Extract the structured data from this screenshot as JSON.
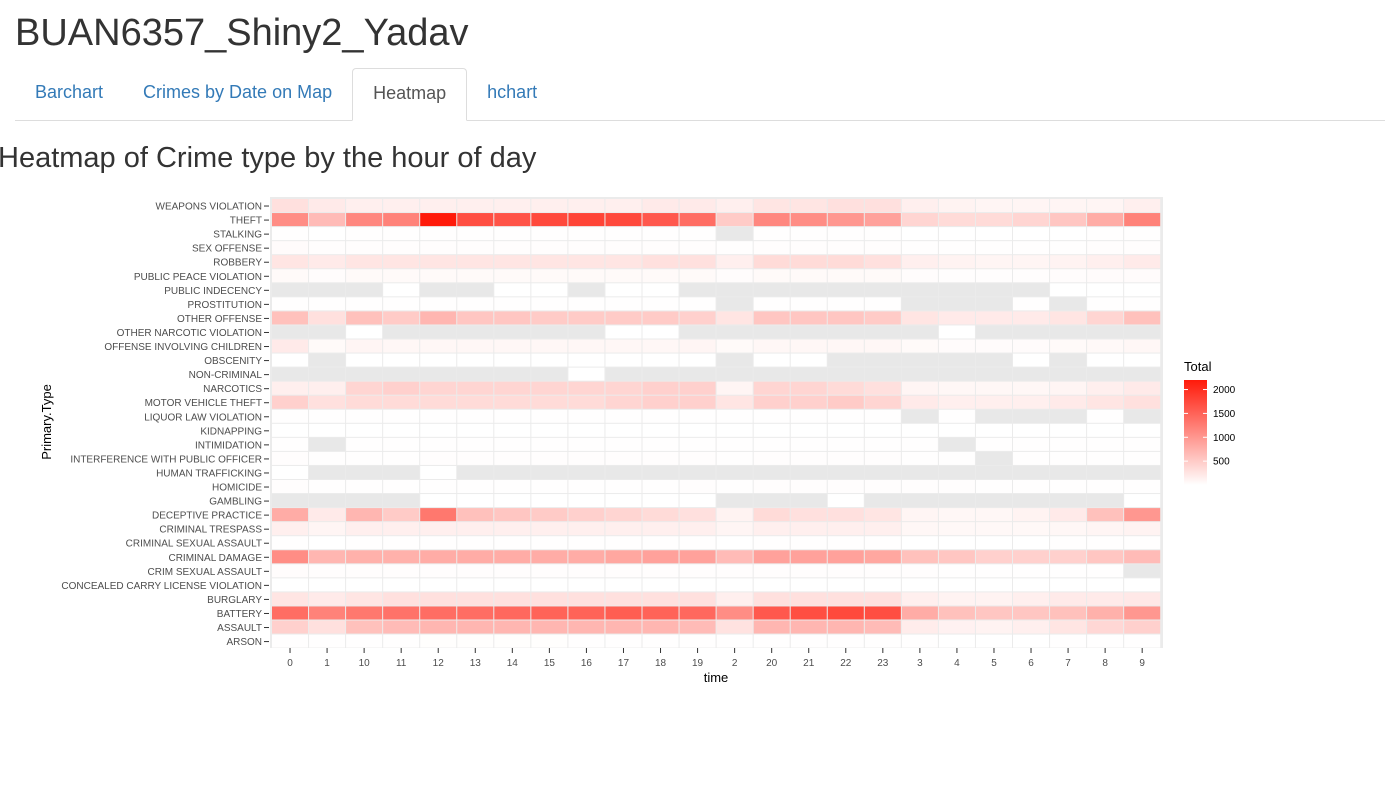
{
  "app": {
    "title": "BUAN6357_Shiny2_Yadav"
  },
  "tabs": [
    {
      "label": "Barchart",
      "active": false
    },
    {
      "label": "Crimes by Date on Map",
      "active": false
    },
    {
      "label": "Heatmap",
      "active": true
    },
    {
      "label": "hchart",
      "active": false
    }
  ],
  "main": {
    "heading": "Heatmap of Crime type by the hour of day"
  },
  "colors": {
    "low": "#ffffff",
    "high": "#ff1a0a",
    "missing": "#e8e8e8",
    "panel": "#ebebeb"
  },
  "chart_data": {
    "type": "heatmap",
    "title": "",
    "xlabel": "time",
    "ylabel": "Primary.Type",
    "legend": {
      "title": "Total",
      "breaks": [
        500,
        1000,
        1500,
        2000
      ],
      "placement": "right"
    },
    "value_range": [
      0,
      2200
    ],
    "x": [
      "0",
      "1",
      "10",
      "11",
      "12",
      "13",
      "14",
      "15",
      "16",
      "17",
      "18",
      "19",
      "2",
      "20",
      "21",
      "22",
      "23",
      "3",
      "4",
      "5",
      "6",
      "7",
      "8",
      "9"
    ],
    "y": [
      "ARSON",
      "ASSAULT",
      "BATTERY",
      "BURGLARY",
      "CONCEALED CARRY LICENSE VIOLATION",
      "CRIM SEXUAL ASSAULT",
      "CRIMINAL DAMAGE",
      "CRIMINAL SEXUAL ASSAULT",
      "CRIMINAL TRESPASS",
      "DECEPTIVE PRACTICE",
      "GAMBLING",
      "HOMICIDE",
      "HUMAN TRAFFICKING",
      "INTERFERENCE WITH PUBLIC OFFICER",
      "INTIMIDATION",
      "KIDNAPPING",
      "LIQUOR LAW VIOLATION",
      "MOTOR VEHICLE THEFT",
      "NARCOTICS",
      "NON-CRIMINAL",
      "OBSCENITY",
      "OFFENSE INVOLVING CHILDREN",
      "OTHER NARCOTIC VIOLATION",
      "OTHER OFFENSE",
      "PROSTITUTION",
      "PUBLIC INDECENCY",
      "PUBLIC PEACE VIOLATION",
      "ROBBERY",
      "SEX OFFENSE",
      "STALKING",
      "THEFT",
      "WEAPONS VIOLATION"
    ],
    "values": [
      [
        10,
        8,
        12,
        12,
        14,
        14,
        14,
        14,
        13,
        13,
        12,
        12,
        6,
        12,
        12,
        12,
        12,
        5,
        4,
        4,
        4,
        5,
        8,
        10
      ],
      [
        450,
        300,
        600,
        650,
        700,
        700,
        700,
        700,
        700,
        700,
        700,
        650,
        280,
        700,
        700,
        700,
        650,
        180,
        130,
        120,
        150,
        250,
        380,
        450
      ],
      [
        1400,
        1200,
        1300,
        1350,
        1400,
        1400,
        1450,
        1500,
        1500,
        1550,
        1500,
        1450,
        1100,
        1600,
        1700,
        1750,
        1700,
        800,
        600,
        550,
        550,
        600,
        750,
        1000
      ],
      [
        250,
        200,
        250,
        300,
        300,
        300,
        300,
        300,
        300,
        300,
        300,
        300,
        150,
        300,
        300,
        300,
        300,
        150,
        120,
        120,
        150,
        200,
        200,
        220
      ],
      [
        3,
        3,
        3,
        3,
        3,
        3,
        3,
        3,
        3,
        3,
        3,
        3,
        3,
        3,
        3,
        3,
        3,
        3,
        3,
        3,
        3,
        3,
        3,
        3
      ],
      [
        25,
        15,
        15,
        15,
        15,
        15,
        15,
        15,
        15,
        15,
        15,
        15,
        15,
        15,
        15,
        15,
        15,
        15,
        10,
        10,
        10,
        10,
        10,
        null
      ],
      [
        1100,
        700,
        750,
        750,
        800,
        800,
        800,
        800,
        800,
        850,
        900,
        900,
        650,
        900,
        900,
        900,
        850,
        600,
        550,
        450,
        450,
        450,
        550,
        650
      ],
      [
        5,
        3,
        5,
        5,
        5,
        5,
        5,
        5,
        5,
        5,
        5,
        5,
        3,
        5,
        5,
        5,
        5,
        3,
        3,
        3,
        3,
        5,
        5,
        5
      ],
      [
        150,
        100,
        150,
        150,
        150,
        150,
        150,
        150,
        150,
        150,
        150,
        150,
        100,
        150,
        150,
        150,
        150,
        80,
        70,
        70,
        70,
        80,
        100,
        120
      ],
      [
        800,
        200,
        700,
        500,
        1300,
        600,
        550,
        500,
        450,
        400,
        350,
        300,
        120,
        350,
        300,
        300,
        250,
        100,
        80,
        80,
        120,
        200,
        600,
        1000
      ],
      [
        null,
        null,
        null,
        null,
        2,
        2,
        2,
        2,
        2,
        2,
        2,
        2,
        null,
        null,
        null,
        2,
        null,
        null,
        null,
        null,
        null,
        null,
        null,
        2
      ],
      [
        15,
        10,
        10,
        10,
        10,
        10,
        10,
        10,
        10,
        10,
        10,
        15,
        10,
        15,
        15,
        15,
        15,
        15,
        15,
        10,
        10,
        10,
        10,
        10
      ],
      [
        2,
        null,
        null,
        null,
        2,
        null,
        null,
        null,
        null,
        null,
        null,
        null,
        null,
        null,
        null,
        null,
        null,
        null,
        null,
        null,
        null,
        null,
        null,
        null
      ],
      [
        15,
        10,
        10,
        10,
        15,
        15,
        15,
        15,
        15,
        15,
        15,
        15,
        10,
        15,
        15,
        15,
        15,
        10,
        10,
        null,
        10,
        10,
        10,
        10
      ],
      [
        10,
        null,
        5,
        5,
        5,
        5,
        5,
        5,
        5,
        5,
        5,
        5,
        5,
        5,
        5,
        5,
        5,
        5,
        null,
        5,
        5,
        5,
        5,
        5
      ],
      [
        3,
        2,
        2,
        2,
        2,
        2,
        2,
        2,
        2,
        2,
        2,
        2,
        2,
        2,
        2,
        2,
        2,
        2,
        2,
        2,
        2,
        2,
        2,
        2
      ],
      [
        5,
        5,
        5,
        5,
        5,
        5,
        5,
        5,
        5,
        5,
        5,
        5,
        5,
        5,
        5,
        5,
        5,
        null,
        5,
        null,
        null,
        null,
        5,
        null
      ],
      [
        450,
        300,
        350,
        350,
        350,
        350,
        350,
        350,
        350,
        400,
        450,
        450,
        250,
        450,
        450,
        500,
        400,
        200,
        150,
        150,
        150,
        200,
        250,
        300
      ],
      [
        150,
        150,
        400,
        450,
        400,
        400,
        400,
        400,
        400,
        400,
        450,
        450,
        100,
        400,
        400,
        350,
        300,
        100,
        80,
        80,
        80,
        100,
        150,
        200
      ],
      [
        null,
        null,
        null,
        null,
        null,
        null,
        null,
        null,
        3,
        null,
        null,
        null,
        null,
        null,
        null,
        null,
        null,
        null,
        null,
        null,
        null,
        null,
        null,
        null
      ],
      [
        3,
        null,
        3,
        3,
        3,
        3,
        3,
        3,
        3,
        3,
        3,
        3,
        null,
        3,
        3,
        null,
        null,
        null,
        null,
        null,
        3,
        null,
        3,
        3
      ],
      [
        200,
        50,
        100,
        80,
        80,
        80,
        80,
        80,
        80,
        80,
        80,
        100,
        50,
        80,
        80,
        80,
        80,
        50,
        40,
        40,
        40,
        50,
        60,
        80
      ],
      [
        null,
        null,
        3,
        null,
        null,
        null,
        null,
        null,
        null,
        3,
        3,
        null,
        null,
        null,
        null,
        null,
        null,
        null,
        3,
        null,
        null,
        null,
        null,
        null
      ],
      [
        600,
        300,
        600,
        500,
        700,
        550,
        550,
        500,
        500,
        500,
        500,
        450,
        250,
        550,
        550,
        550,
        500,
        250,
        200,
        200,
        200,
        250,
        400,
        600
      ],
      [
        5,
        5,
        5,
        5,
        5,
        5,
        5,
        5,
        5,
        5,
        5,
        5,
        null,
        5,
        5,
        5,
        5,
        null,
        null,
        null,
        5,
        null,
        5,
        5
      ],
      [
        null,
        null,
        null,
        3,
        null,
        null,
        3,
        3,
        null,
        3,
        3,
        null,
        null,
        null,
        null,
        null,
        null,
        null,
        null,
        null,
        null,
        3,
        3,
        3
      ],
      [
        50,
        30,
        50,
        50,
        50,
        50,
        50,
        50,
        50,
        50,
        50,
        50,
        30,
        50,
        50,
        50,
        50,
        30,
        20,
        20,
        20,
        30,
        40,
        40
      ],
      [
        250,
        200,
        250,
        250,
        250,
        250,
        250,
        250,
        250,
        250,
        300,
        300,
        150,
        350,
        350,
        350,
        300,
        150,
        120,
        100,
        100,
        120,
        150,
        200
      ],
      [
        40,
        15,
        20,
        20,
        20,
        20,
        20,
        20,
        20,
        20,
        20,
        20,
        10,
        20,
        20,
        20,
        20,
        10,
        10,
        10,
        10,
        10,
        15,
        20
      ],
      [
        5,
        3,
        5,
        5,
        5,
        5,
        5,
        5,
        5,
        5,
        5,
        5,
        null,
        5,
        5,
        5,
        5,
        3,
        3,
        3,
        3,
        3,
        5,
        5
      ],
      [
        1100,
        650,
        1150,
        1200,
        2200,
        1700,
        1650,
        1750,
        1800,
        1750,
        1600,
        1400,
        500,
        1150,
        1100,
        1000,
        900,
        400,
        350,
        350,
        400,
        550,
        800,
        1200
      ],
      [
        300,
        200,
        150,
        150,
        150,
        150,
        150,
        150,
        150,
        150,
        200,
        200,
        150,
        250,
        250,
        300,
        300,
        150,
        120,
        100,
        100,
        100,
        100,
        150
      ]
    ]
  }
}
